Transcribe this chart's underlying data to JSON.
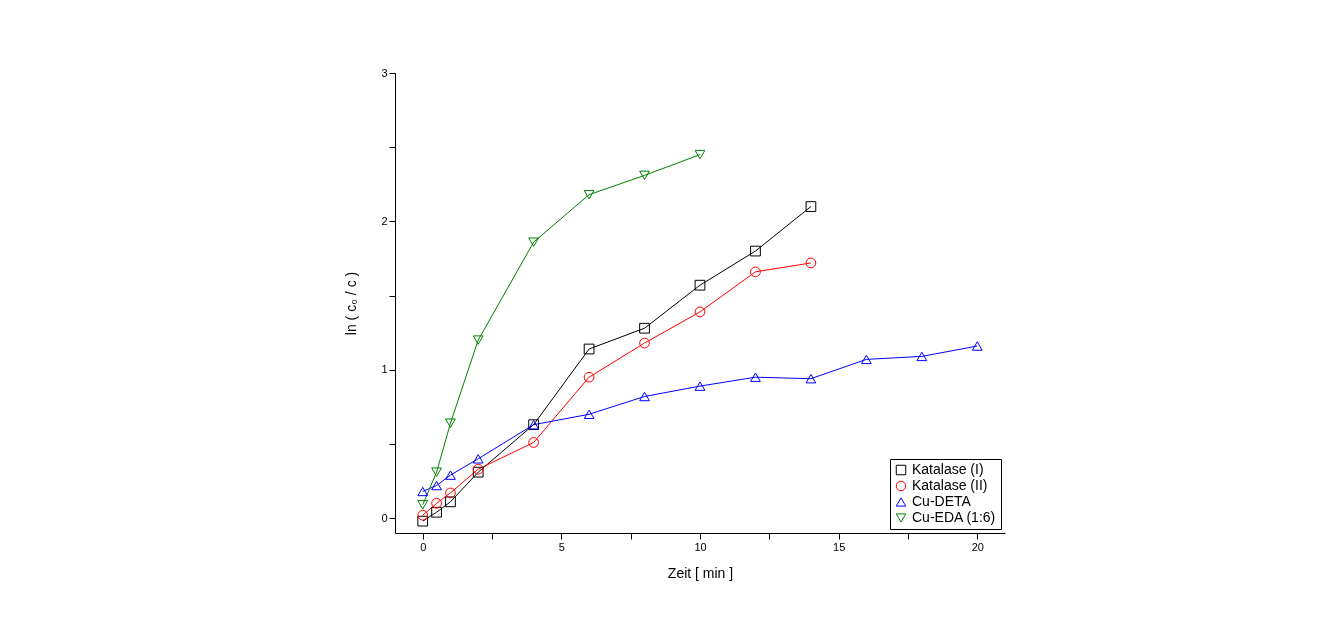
{
  "chart_data": {
    "type": "line",
    "xlabel": "Zeit  [ min ]",
    "ylabel": "ln ( c₀ / c )",
    "xlim": [
      -1,
      21
    ],
    "xticks": [
      0,
      {
        "value": 2.5,
        "label": null
      },
      5,
      {
        "value": 7.5,
        "label": null
      },
      10,
      {
        "value": 12.5,
        "label": null
      },
      15,
      {
        "value": 17.5,
        "label": null
      },
      20
    ],
    "ylim": [
      -0.1,
      3
    ],
    "yticks": [
      0,
      {
        "value": 0.5,
        "label": null
      },
      1,
      {
        "value": 1.5,
        "label": null
      },
      2,
      {
        "value": 2.5,
        "label": null
      },
      3
    ],
    "legend": "bottom right",
    "grid": false,
    "line_style": "solid",
    "series": [
      {
        "name": "Katalase (I)",
        "color": "#000000",
        "marker": "square",
        "x": [
          0,
          0.5,
          1,
          2,
          4,
          6,
          8,
          10,
          12,
          14
        ],
        "values": [
          -0.02,
          0.04,
          0.11,
          0.31,
          0.63,
          1.14,
          1.28,
          1.57,
          1.8,
          2.1
        ]
      },
      {
        "name": "Katalase (II)",
        "color": "#ff0000",
        "marker": "circle",
        "x": [
          0,
          0.5,
          1,
          2,
          4,
          6,
          8,
          10,
          12,
          14
        ],
        "values": [
          0.02,
          0.1,
          0.17,
          0.33,
          0.51,
          0.95,
          1.18,
          1.39,
          1.66,
          1.72
        ]
      },
      {
        "name": "Cu-DETA",
        "color": "#0000ff",
        "marker": "triangle",
        "x": [
          0,
          0.5,
          1,
          2,
          4,
          6,
          8,
          10,
          12,
          14,
          16,
          18,
          20
        ],
        "values": [
          0.18,
          0.22,
          0.29,
          0.4,
          0.63,
          0.7,
          0.82,
          0.89,
          0.95,
          0.94,
          1.07,
          1.09,
          1.16
        ]
      },
      {
        "name": "Cu-EDA (1:6)",
        "color": "#008000",
        "marker": "triangle-down",
        "x": [
          0,
          0.5,
          1,
          2,
          4,
          6,
          8,
          10
        ],
        "values": [
          0.09,
          0.31,
          0.64,
          1.2,
          1.86,
          2.18,
          2.31,
          2.45
        ]
      }
    ]
  }
}
